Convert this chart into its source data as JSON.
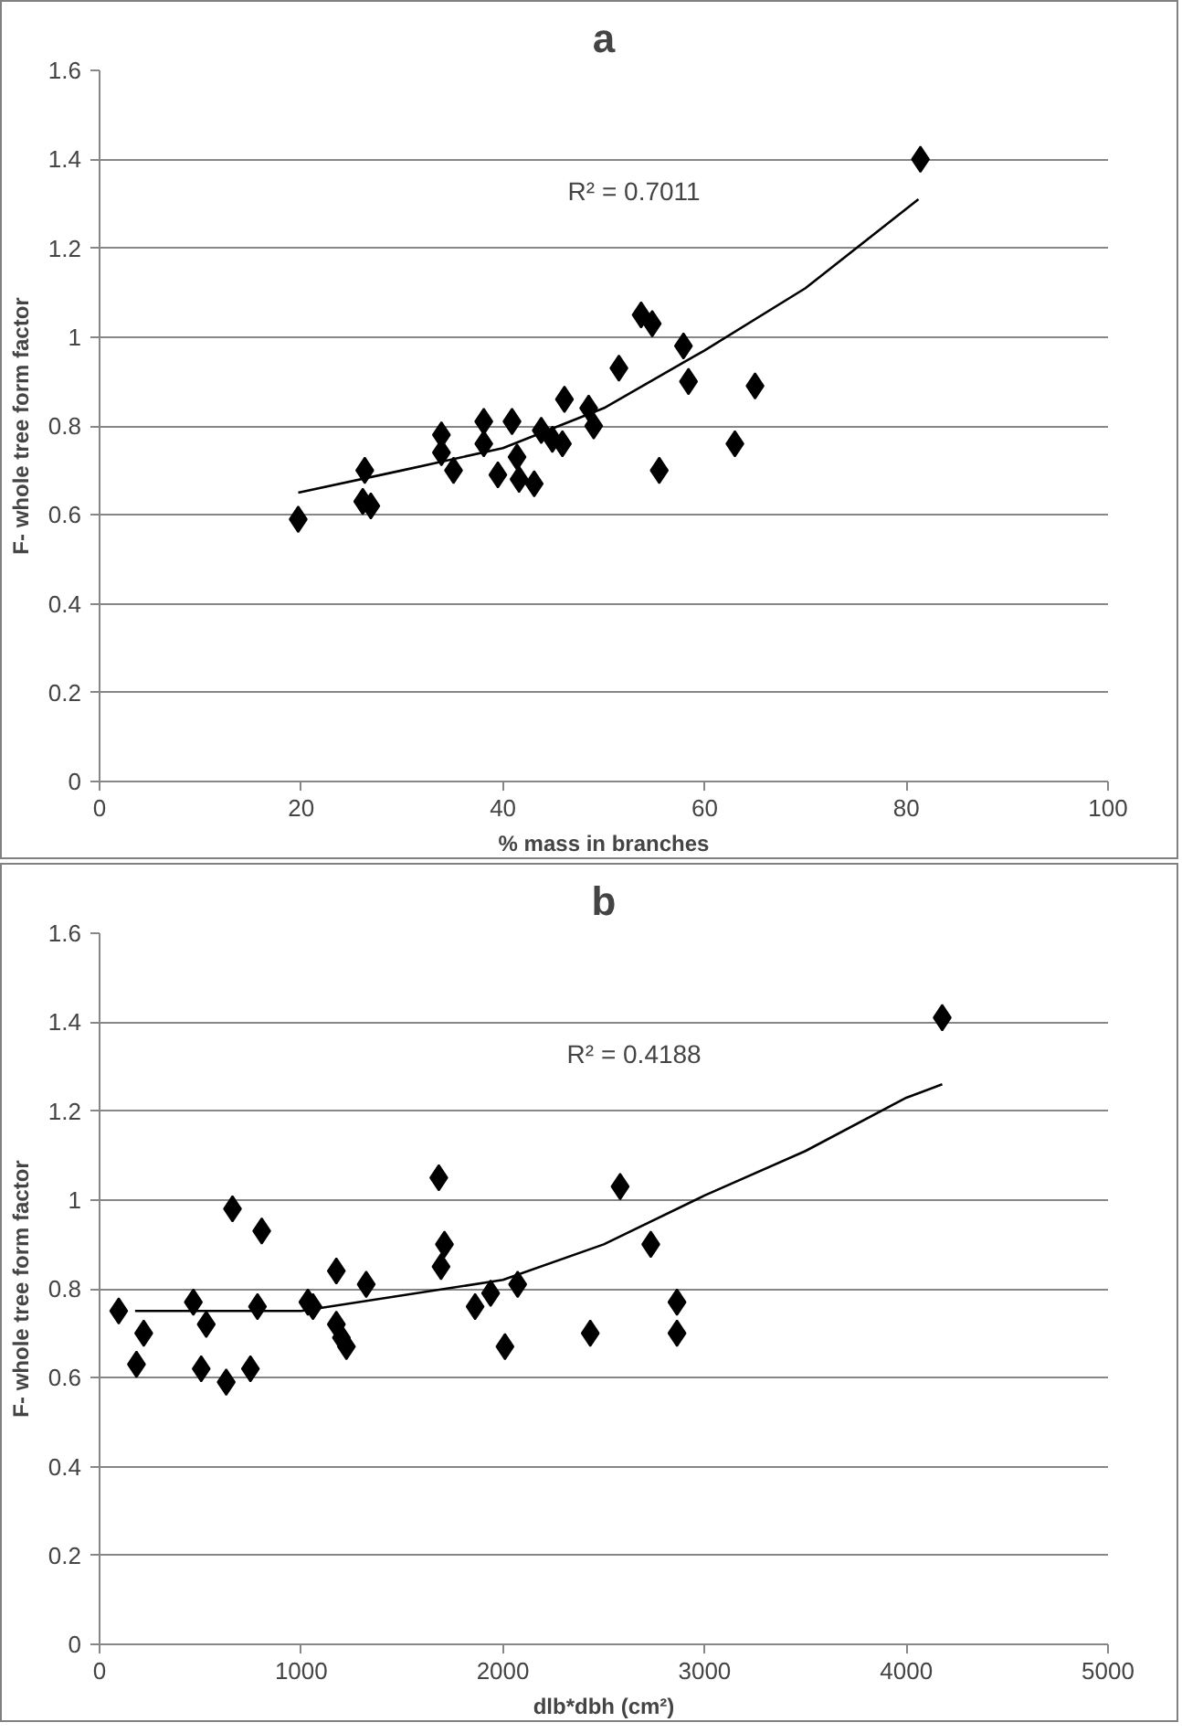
{
  "chart_data": [
    {
      "type": "scatter",
      "title": "a",
      "xlabel": "% mass in branches",
      "ylabel": "F- whole tree form factor",
      "xlim": [
        0,
        100
      ],
      "xticks": [
        0,
        20,
        40,
        60,
        80,
        100
      ],
      "ylim": [
        0,
        1.6
      ],
      "yticks": [
        0,
        0.2,
        0.4,
        0.6,
        0.8,
        1,
        1.2,
        1.4,
        1.6
      ],
      "grid": "y",
      "annotations": [
        "R² = 0.7011"
      ],
      "series": [
        {
          "marker": "diamond",
          "color": "#000000",
          "x": [
            19.7,
            26.3,
            26.1,
            26.9,
            33.9,
            33.9,
            35.1,
            38.1,
            38.1,
            39.5,
            40.9,
            41.4,
            41.6,
            43.1,
            43.8,
            44.9,
            45.9,
            46.1,
            48.5,
            49.0,
            51.5,
            53.7,
            54.8,
            55.5,
            57.9,
            58.4,
            63.0,
            65.0,
            81.4
          ],
          "values": [
            0.59,
            0.7,
            0.63,
            0.62,
            0.78,
            0.74,
            0.7,
            0.81,
            0.76,
            0.69,
            0.81,
            0.73,
            0.68,
            0.67,
            0.79,
            0.77,
            0.76,
            0.86,
            0.84,
            0.8,
            0.93,
            1.05,
            1.03,
            0.7,
            0.98,
            0.9,
            0.76,
            0.89,
            1.4
          ]
        },
        {
          "type": "line",
          "marker": "none",
          "color": "#000000",
          "x": [
            19.7,
            30,
            40,
            50,
            60,
            70,
            81.2
          ],
          "values": [
            0.65,
            0.7,
            0.75,
            0.84,
            0.97,
            1.11,
            1.31
          ]
        }
      ]
    },
    {
      "type": "scatter",
      "title": "b",
      "xlabel": "dlb*dbh (cm²)",
      "ylabel": "F- whole tree form factor",
      "xlim": [
        0,
        5000
      ],
      "xticks": [
        0,
        1000,
        2000,
        3000,
        4000,
        5000
      ],
      "ylim": [
        0,
        1.6
      ],
      "yticks": [
        0,
        0.2,
        0.4,
        0.6,
        0.8,
        1,
        1.2,
        1.4,
        1.6
      ],
      "grid": "y",
      "annotations": [
        "R² = 0.4188"
      ],
      "series": [
        {
          "marker": "diamond",
          "color": "#000000",
          "x": [
            95,
            219,
            183,
            465,
            529,
            504,
            628,
            659,
            748,
            783,
            804,
            1033,
            1058,
            1174,
            1174,
            1199,
            1224,
            1322,
            1682,
            1710,
            1693,
            1862,
            1939,
            2010,
            2073,
            2433,
            2581,
            2733,
            2863,
            2863,
            4178
          ],
          "values": [
            0.75,
            0.7,
            0.63,
            0.77,
            0.72,
            0.62,
            0.59,
            0.98,
            0.62,
            0.76,
            0.93,
            0.77,
            0.76,
            0.84,
            0.72,
            0.69,
            0.67,
            0.81,
            1.05,
            0.9,
            0.85,
            0.76,
            0.79,
            0.67,
            0.81,
            0.7,
            1.03,
            0.9,
            0.77,
            0.7,
            1.41
          ]
        },
        {
          "type": "line",
          "marker": "none",
          "color": "#000000",
          "x": [
            176,
            1000,
            2000,
            2500,
            3000,
            3500,
            4000,
            4178
          ],
          "values": [
            0.75,
            0.75,
            0.82,
            0.9,
            1.01,
            1.11,
            1.23,
            1.26
          ]
        }
      ]
    }
  ]
}
